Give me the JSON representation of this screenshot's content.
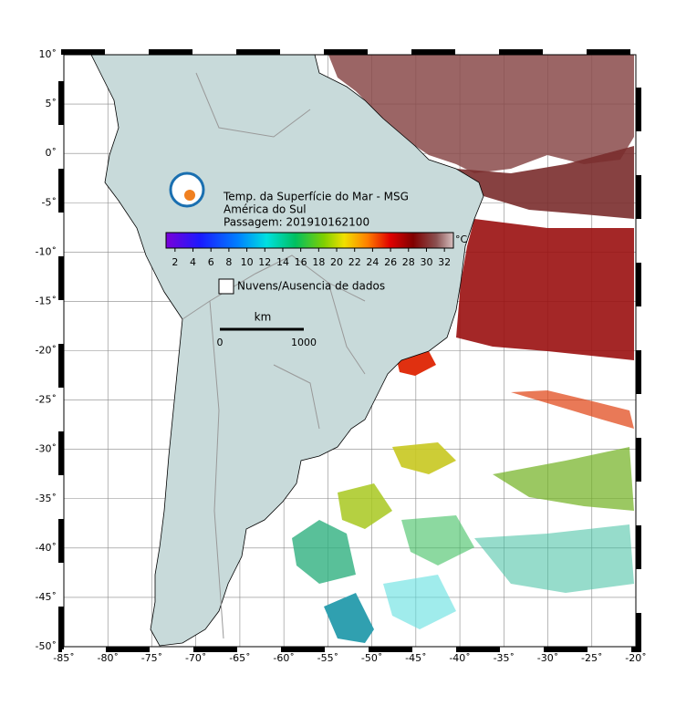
{
  "map": {
    "title_lines": [
      "Temp. da Superfície do Mar - MSG",
      "América do Sul",
      "Passagem: 201910162100"
    ],
    "lon_ticks": [
      {
        "value": -85,
        "label": "-85˚"
      },
      {
        "value": -80,
        "label": "-80˚"
      },
      {
        "value": -75,
        "label": "-75˚"
      },
      {
        "value": -70,
        "label": "-70˚"
      },
      {
        "value": -65,
        "label": "-65˚"
      },
      {
        "value": -60,
        "label": "-60˚"
      },
      {
        "value": -55,
        "label": "-55˚"
      },
      {
        "value": -50,
        "label": "-50˚"
      },
      {
        "value": -45,
        "label": "-45˚"
      },
      {
        "value": -40,
        "label": "-40˚"
      },
      {
        "value": -35,
        "label": "-35˚"
      },
      {
        "value": -30,
        "label": "-30˚"
      },
      {
        "value": -25,
        "label": "-25˚"
      },
      {
        "value": -20,
        "label": "-20˚"
      }
    ],
    "lat_ticks": [
      {
        "value": 10,
        "label": "10˚"
      },
      {
        "value": 5,
        "label": "5˚"
      },
      {
        "value": 0,
        "label": "0˚"
      },
      {
        "value": -5,
        "label": "-5˚"
      },
      {
        "value": -10,
        "label": "-10˚"
      },
      {
        "value": -15,
        "label": "-15˚"
      },
      {
        "value": -20,
        "label": "-20˚"
      },
      {
        "value": -25,
        "label": "-25˚"
      },
      {
        "value": -30,
        "label": "-30˚"
      },
      {
        "value": -35,
        "label": "-35˚"
      },
      {
        "value": -40,
        "label": "-40˚"
      },
      {
        "value": -45,
        "label": "-45˚"
      },
      {
        "value": -50,
        "label": "-50˚"
      }
    ],
    "lon_range": [
      -85,
      -20
    ],
    "lat_range": [
      10,
      -50
    ],
    "colorbar": {
      "unit": "°C",
      "ticks": [
        2,
        4,
        6,
        8,
        10,
        12,
        14,
        16,
        18,
        20,
        22,
        24,
        26,
        28,
        30,
        32
      ],
      "range": [
        1,
        33
      ]
    },
    "legend": "Nuvens/Ausencia de dados",
    "scale": {
      "unit": "km",
      "labels": [
        "0",
        "1000"
      ]
    }
  }
}
